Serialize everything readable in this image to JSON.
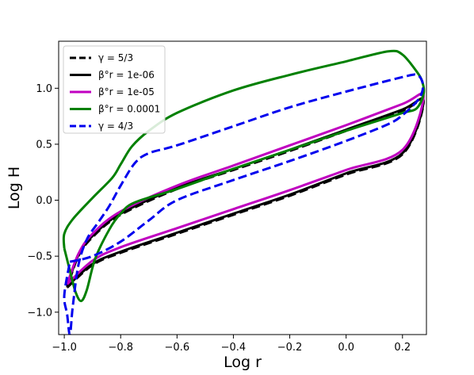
{
  "chart_data": {
    "type": "line",
    "title": "",
    "xlabel": "Log r",
    "ylabel": "Log H",
    "xlim": [
      -1.02,
      0.285
    ],
    "ylim": [
      -1.2,
      1.42
    ],
    "xticks": [
      -1.0,
      -0.8,
      -0.6,
      -0.4,
      -0.2,
      0.0,
      0.2
    ],
    "xtick_labels": [
      "−1.0",
      "−0.8",
      "−0.6",
      "−0.4",
      "−0.2",
      "0.0",
      "0.2"
    ],
    "yticks": [
      -1.0,
      -0.5,
      0.0,
      0.5,
      1.0
    ],
    "ytick_labels": [
      "−1.0",
      "−0.5",
      "0.0",
      "0.5",
      "1.0"
    ],
    "grid": false,
    "legend_position": "top-left",
    "series": [
      {
        "name": "γ = 5/3",
        "color": "#000000",
        "style": "dashed",
        "points": [
          [
            -0.99,
            -0.78
          ],
          [
            -0.9,
            -0.58
          ],
          [
            -0.8,
            -0.47
          ],
          [
            -0.6,
            -0.3
          ],
          [
            -0.4,
            -0.13
          ],
          [
            -0.2,
            0.04
          ],
          [
            0.0,
            0.23
          ],
          [
            0.2,
            0.41
          ],
          [
            0.275,
            0.88
          ],
          [
            0.2,
            0.8
          ],
          [
            0.0,
            0.62
          ],
          [
            -0.2,
            0.44
          ],
          [
            -0.4,
            0.27
          ],
          [
            -0.6,
            0.1
          ],
          [
            -0.8,
            -0.13
          ],
          [
            -0.9,
            -0.33
          ],
          [
            -0.95,
            -0.5
          ],
          [
            -0.99,
            -0.78
          ]
        ]
      },
      {
        "name": "β°r = 1e-06",
        "color": "#000000",
        "style": "solid",
        "points": [
          [
            -0.99,
            -0.77
          ],
          [
            -0.9,
            -0.57
          ],
          [
            -0.8,
            -0.46
          ],
          [
            -0.6,
            -0.29
          ],
          [
            -0.4,
            -0.12
          ],
          [
            -0.2,
            0.05
          ],
          [
            0.0,
            0.24
          ],
          [
            0.2,
            0.42
          ],
          [
            0.275,
            0.89
          ],
          [
            0.2,
            0.81
          ],
          [
            0.0,
            0.63
          ],
          [
            -0.2,
            0.45
          ],
          [
            -0.4,
            0.28
          ],
          [
            -0.6,
            0.11
          ],
          [
            -0.8,
            -0.12
          ],
          [
            -0.9,
            -0.32
          ],
          [
            -0.95,
            -0.49
          ],
          [
            -0.99,
            -0.77
          ]
        ]
      },
      {
        "name": "β°r = 1e-05",
        "color": "#c000c0",
        "style": "solid",
        "points": [
          [
            -0.99,
            -0.75
          ],
          [
            -0.9,
            -0.54
          ],
          [
            -0.8,
            -0.42
          ],
          [
            -0.6,
            -0.25
          ],
          [
            -0.4,
            -0.08
          ],
          [
            -0.2,
            0.09
          ],
          [
            0.0,
            0.27
          ],
          [
            0.2,
            0.45
          ],
          [
            0.275,
            0.93
          ],
          [
            0.2,
            0.86
          ],
          [
            0.0,
            0.67
          ],
          [
            -0.2,
            0.49
          ],
          [
            -0.4,
            0.31
          ],
          [
            -0.6,
            0.13
          ],
          [
            -0.8,
            -0.1
          ],
          [
            -0.9,
            -0.3
          ],
          [
            -0.95,
            -0.48
          ],
          [
            -0.99,
            -0.75
          ]
        ]
      },
      {
        "name": "β°r = 0.0001",
        "color": "#008000",
        "style": "solid",
        "points": [
          [
            -1.0,
            -0.43
          ],
          [
            -0.98,
            -0.63
          ],
          [
            -0.96,
            -0.82
          ],
          [
            -0.94,
            -0.9
          ],
          [
            -0.92,
            -0.8
          ],
          [
            -0.89,
            -0.52
          ],
          [
            -0.84,
            -0.26
          ],
          [
            -0.8,
            -0.12
          ],
          [
            -0.75,
            -0.02
          ],
          [
            -0.6,
            0.1
          ],
          [
            -0.4,
            0.28
          ],
          [
            -0.2,
            0.45
          ],
          [
            0.0,
            0.62
          ],
          [
            0.1,
            0.7
          ],
          [
            0.2,
            0.78
          ],
          [
            0.25,
            0.82
          ],
          [
            0.275,
            0.95
          ],
          [
            0.27,
            1.06
          ],
          [
            0.25,
            1.15
          ],
          [
            0.2,
            1.3
          ],
          [
            0.15,
            1.33
          ],
          [
            0.0,
            1.24
          ],
          [
            -0.2,
            1.12
          ],
          [
            -0.4,
            0.98
          ],
          [
            -0.6,
            0.78
          ],
          [
            -0.7,
            0.62
          ],
          [
            -0.76,
            0.48
          ],
          [
            -0.8,
            0.32
          ],
          [
            -0.83,
            0.2
          ],
          [
            -0.9,
            0.02
          ],
          [
            -0.97,
            -0.17
          ],
          [
            -1.0,
            -0.3
          ],
          [
            -1.0,
            -0.43
          ]
        ]
      },
      {
        "name": "γ = 4/3",
        "color": "#0000ee",
        "style": "dashed",
        "points": [
          [
            -0.98,
            -0.55
          ],
          [
            -0.9,
            -0.5
          ],
          [
            -0.8,
            -0.37
          ],
          [
            -0.7,
            -0.18
          ],
          [
            -0.6,
            0.0
          ],
          [
            -0.4,
            0.18
          ],
          [
            -0.2,
            0.35
          ],
          [
            0.0,
            0.53
          ],
          [
            0.15,
            0.68
          ],
          [
            0.2,
            0.76
          ],
          [
            0.25,
            0.88
          ],
          [
            0.27,
            0.97
          ],
          [
            0.27,
            1.06
          ],
          [
            0.25,
            1.12
          ],
          [
            0.2,
            1.1
          ],
          [
            0.0,
            0.97
          ],
          [
            -0.2,
            0.83
          ],
          [
            -0.4,
            0.66
          ],
          [
            -0.6,
            0.49
          ],
          [
            -0.7,
            0.42
          ],
          [
            -0.75,
            0.33
          ],
          [
            -0.8,
            0.13
          ],
          [
            -0.84,
            -0.05
          ],
          [
            -0.88,
            -0.2
          ],
          [
            -0.92,
            -0.35
          ],
          [
            -0.95,
            -0.58
          ],
          [
            -0.97,
            -0.95
          ],
          [
            -0.98,
            -1.2
          ],
          [
            -0.99,
            -1.02
          ],
          [
            -1.0,
            -0.85
          ],
          [
            -0.98,
            -0.55
          ]
        ]
      }
    ]
  }
}
